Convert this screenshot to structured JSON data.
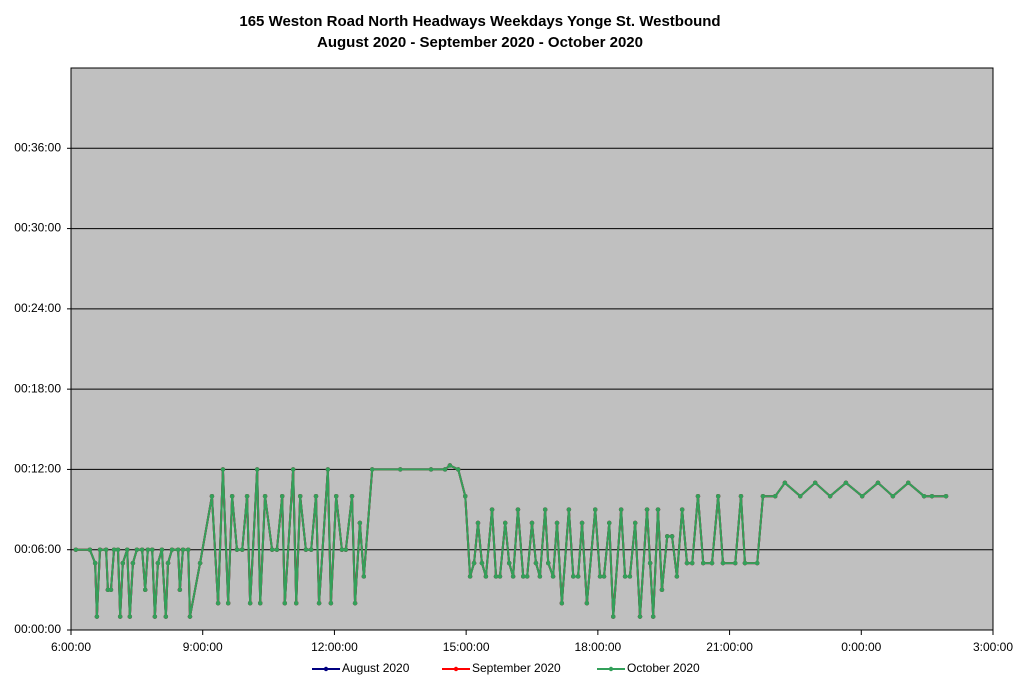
{
  "chart_data": {
    "type": "line",
    "title": "165 Weston Road North Headways Weekdays Yonge St. Westbound",
    "subtitle": "August 2020 - September 2020 - October 2020",
    "x": [
      6.11,
      6.43,
      6.55,
      6.59,
      6.66,
      6.8,
      6.84,
      6.91,
      6.98,
      7.07,
      7.12,
      7.18,
      7.28,
      7.34,
      7.41,
      7.5,
      7.62,
      7.69,
      7.75,
      7.85,
      7.91,
      7.98,
      8.07,
      8.16,
      8.21,
      8.3,
      8.44,
      8.48,
      8.55,
      8.67,
      8.71,
      8.94,
      9.21,
      9.35,
      9.46,
      9.58,
      9.67,
      9.78,
      9.9,
      10.01,
      10.08,
      10.24,
      10.31,
      10.42,
      10.58,
      10.69,
      10.81,
      10.87,
      11.06,
      11.13,
      11.22,
      11.35,
      11.47,
      11.58,
      11.65,
      11.85,
      11.92,
      12.04,
      12.17,
      12.26,
      12.4,
      12.47,
      12.58,
      12.67,
      12.86,
      13.5,
      14.2,
      14.52,
      14.63,
      14.82,
      14.98,
      15.09,
      15.18,
      15.27,
      15.36,
      15.45,
      15.59,
      15.68,
      15.77,
      15.89,
      15.98,
      16.07,
      16.18,
      16.3,
      16.39,
      16.5,
      16.59,
      16.68,
      16.8,
      16.87,
      16.98,
      17.07,
      17.18,
      17.34,
      17.44,
      17.55,
      17.64,
      17.75,
      17.94,
      18.05,
      18.14,
      18.26,
      18.35,
      18.53,
      18.62,
      18.73,
      18.85,
      18.96,
      19.12,
      19.19,
      19.26,
      19.37,
      19.46,
      19.58,
      19.69,
      19.8,
      19.92,
      20.03,
      20.15,
      20.28,
      20.4,
      20.6,
      20.74,
      20.85,
      21.13,
      21.26,
      21.35,
      21.63,
      21.76,
      22.04,
      22.26,
      22.61,
      22.95,
      23.29,
      23.65,
      24.02,
      24.38,
      24.72,
      25.07,
      25.43,
      25.61,
      25.93
    ],
    "series": [
      {
        "name": "August 2020",
        "color": "#000080",
        "values": [
          6,
          6,
          5,
          1,
          6,
          6,
          3,
          3,
          6,
          6,
          1,
          5,
          6,
          1,
          5,
          6,
          6,
          3,
          6,
          6,
          1,
          5,
          6,
          1,
          5,
          6,
          6,
          3,
          6,
          6,
          1,
          5,
          10,
          2,
          12,
          2,
          10,
          6,
          6,
          10,
          2,
          12,
          2,
          10,
          6,
          6,
          10,
          2,
          12,
          2,
          10,
          6,
          6,
          10,
          2,
          12,
          2,
          10,
          6,
          6,
          10,
          2,
          8,
          4,
          12,
          12,
          12,
          12,
          12.3,
          12,
          10,
          4,
          5,
          8,
          5,
          4,
          9,
          4,
          4,
          8,
          5,
          4,
          9,
          4,
          4,
          8,
          5,
          4,
          9,
          5,
          4,
          8,
          2,
          9,
          4,
          4,
          8,
          2,
          9,
          4,
          4,
          8,
          1,
          9,
          4,
          4,
          8,
          1,
          9,
          5,
          1,
          9,
          3,
          7,
          7,
          4,
          9,
          5,
          5,
          10,
          5,
          5,
          10,
          5,
          5,
          10,
          5,
          5,
          10,
          10,
          11,
          10,
          11,
          10,
          11,
          10,
          11,
          10,
          11,
          10,
          10,
          10
        ]
      },
      {
        "name": "September 2020",
        "color": "#ff0000",
        "values": [
          6,
          6,
          5,
          1,
          6,
          6,
          3,
          3,
          6,
          6,
          1,
          5,
          6,
          1,
          5,
          6,
          6,
          3,
          6,
          6,
          1,
          5,
          6,
          1,
          5,
          6,
          6,
          3,
          6,
          6,
          1,
          5,
          10,
          2,
          12,
          2,
          10,
          6,
          6,
          10,
          2,
          12,
          2,
          10,
          6,
          6,
          10,
          2,
          12,
          2,
          10,
          6,
          6,
          10,
          2,
          12,
          2,
          10,
          6,
          6,
          10,
          2,
          8,
          4,
          12,
          12,
          12,
          12,
          12.3,
          12,
          10,
          4,
          5,
          8,
          5,
          4,
          9,
          4,
          4,
          8,
          5,
          4,
          9,
          4,
          4,
          8,
          5,
          4,
          9,
          5,
          4,
          8,
          2,
          9,
          4,
          4,
          8,
          2,
          9,
          4,
          4,
          8,
          1,
          9,
          4,
          4,
          8,
          1,
          9,
          5,
          1,
          9,
          3,
          7,
          7,
          4,
          9,
          5,
          5,
          10,
          5,
          5,
          10,
          5,
          5,
          10,
          5,
          5,
          10,
          10,
          11,
          10,
          11,
          10,
          11,
          10,
          11,
          10,
          11,
          10,
          10,
          10
        ]
      },
      {
        "name": "October 2020",
        "color": "#33a05a",
        "values": [
          6,
          6,
          5,
          1,
          6,
          6,
          3,
          3,
          6,
          6,
          1,
          5,
          6,
          1,
          5,
          6,
          6,
          3,
          6,
          6,
          1,
          5,
          6,
          1,
          5,
          6,
          6,
          3,
          6,
          6,
          1,
          5,
          10,
          2,
          12,
          2,
          10,
          6,
          6,
          10,
          2,
          12,
          2,
          10,
          6,
          6,
          10,
          2,
          12,
          2,
          10,
          6,
          6,
          10,
          2,
          12,
          2,
          10,
          6,
          6,
          10,
          2,
          8,
          4,
          12,
          12,
          12,
          12,
          12.3,
          12,
          10,
          4,
          5,
          8,
          5,
          4,
          9,
          4,
          4,
          8,
          5,
          4,
          9,
          4,
          4,
          8,
          5,
          4,
          9,
          5,
          4,
          8,
          2,
          9,
          4,
          4,
          8,
          2,
          9,
          4,
          4,
          8,
          1,
          9,
          4,
          4,
          8,
          1,
          9,
          5,
          1,
          9,
          3,
          7,
          7,
          4,
          9,
          5,
          5,
          10,
          5,
          5,
          10,
          5,
          5,
          10,
          5,
          5,
          10,
          10,
          11,
          10,
          11,
          10,
          11,
          10,
          11,
          10,
          11,
          10,
          10,
          10
        ]
      }
    ],
    "xlim": [
      6,
      27
    ],
    "xticks": [
      {
        "value": 6,
        "label": "6:00:00"
      },
      {
        "value": 9,
        "label": "9:00:00"
      },
      {
        "value": 12,
        "label": "12:00:00"
      },
      {
        "value": 15,
        "label": "15:00:00"
      },
      {
        "value": 18,
        "label": "18:00:00"
      },
      {
        "value": 21,
        "label": "21:00:00"
      },
      {
        "value": 24,
        "label": "0:00:00"
      },
      {
        "value": 27,
        "label": "3:00:00"
      }
    ],
    "ylim": [
      0,
      42
    ],
    "yticks": [
      {
        "value": 0,
        "label": "00:00:00"
      },
      {
        "value": 6,
        "label": "00:06:00"
      },
      {
        "value": 12,
        "label": "00:12:00"
      },
      {
        "value": 18,
        "label": "00:18:00"
      },
      {
        "value": 24,
        "label": "00:24:00"
      },
      {
        "value": 30,
        "label": "00:30:00"
      },
      {
        "value": 36,
        "label": "00:36:00"
      }
    ],
    "grid": true,
    "legend": "bottom"
  }
}
